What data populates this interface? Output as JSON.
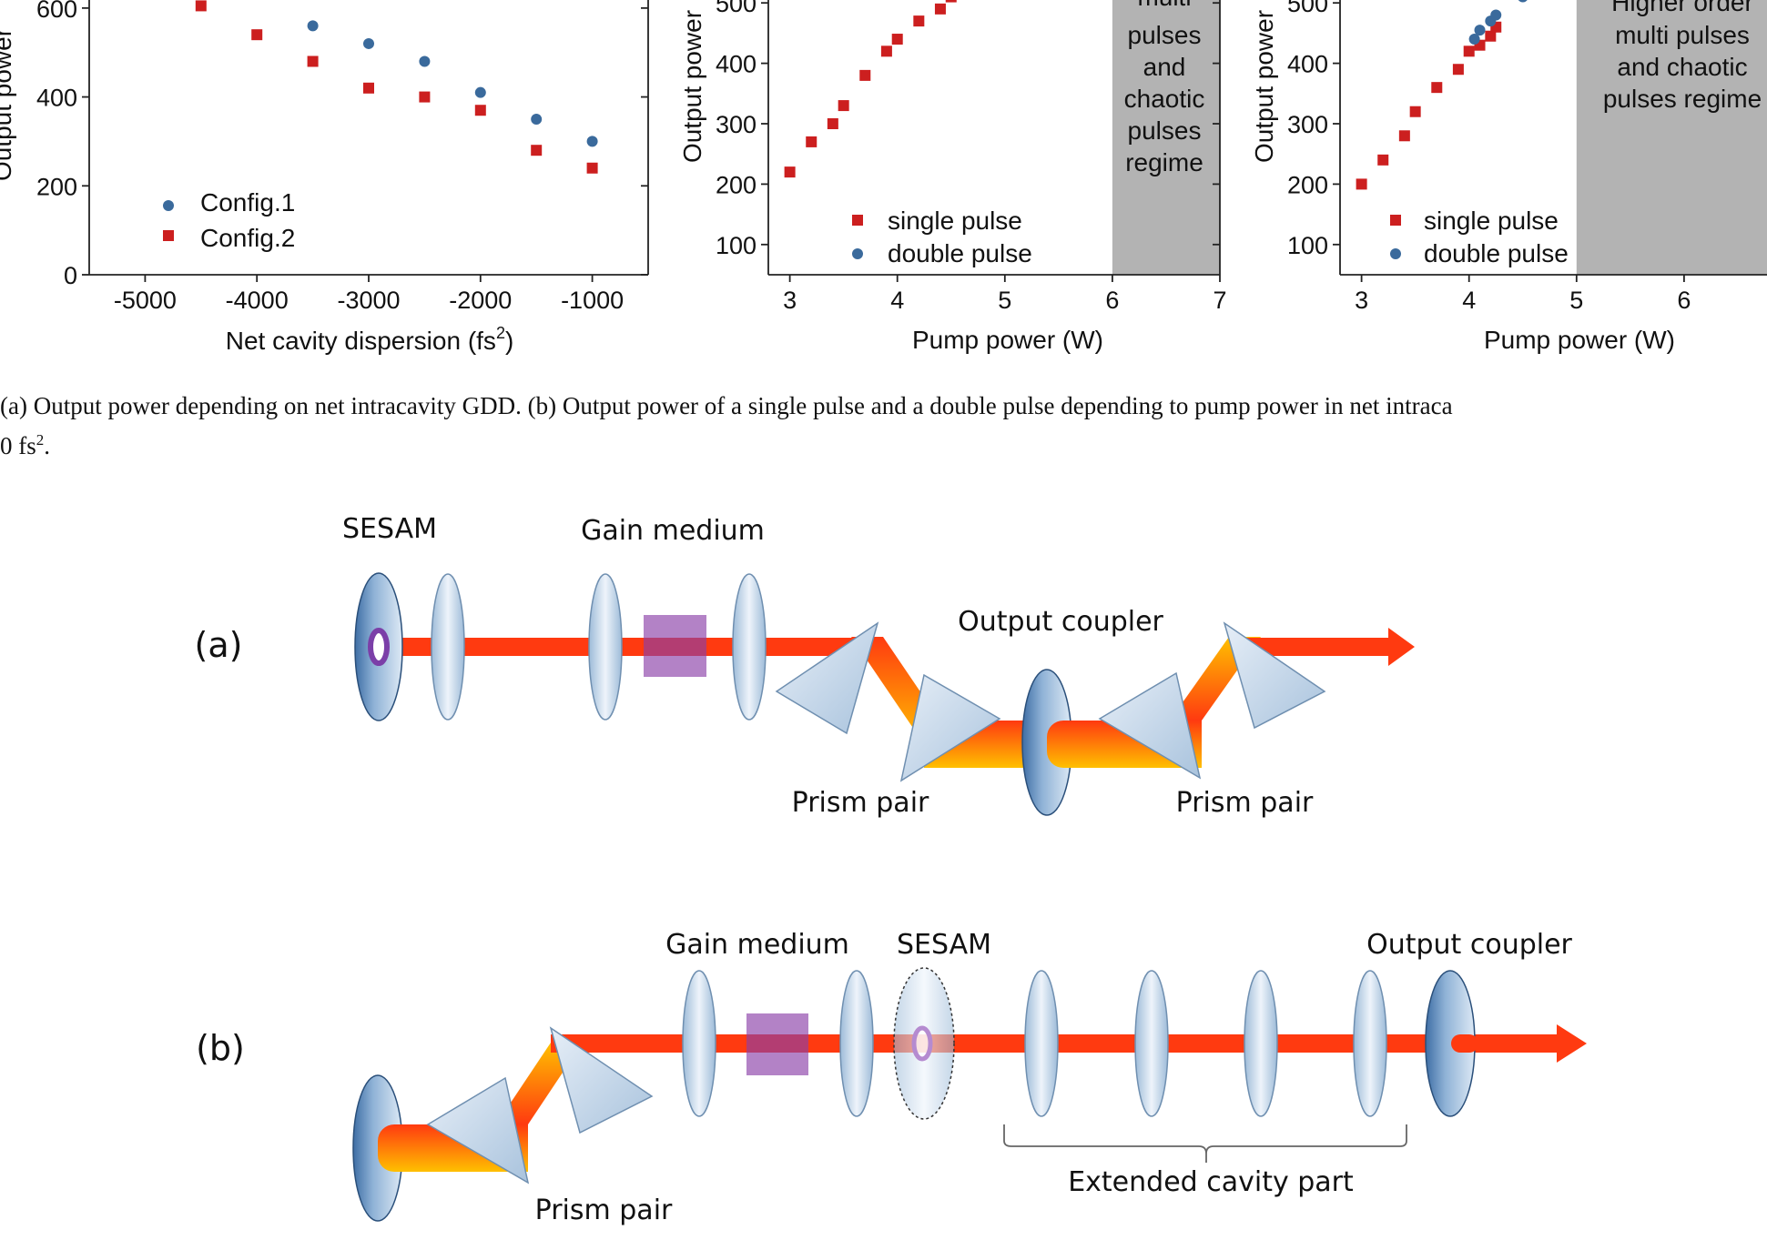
{
  "charts": {
    "chart_a": {
      "ylabel": "Output power",
      "xlabel_main": "Net cavity dispersion (fs",
      "xlabel_sup": "2",
      "xlabel_end": ")",
      "legend": [
        "Config.1",
        "Config.2"
      ]
    },
    "chart_b": {
      "ylabel": "Output power",
      "xlabel": "Pump power (W)",
      "region_label": [
        "multi",
        "pulses",
        "and",
        "chaotic",
        "pulses",
        "regime"
      ],
      "legend": [
        "single pulse",
        "double pulse"
      ]
    },
    "chart_c": {
      "ylabel": "Output power",
      "xlabel": "Pump power (W)",
      "region_label": [
        "Higher order",
        "multi pulses",
        "and chaotic",
        "pulses regime"
      ],
      "legend": [
        "single pulse",
        "double pulse"
      ]
    }
  },
  "chart_data": [
    {
      "type": "scatter",
      "title": "",
      "xlabel": "Net cavity dispersion (fs2)",
      "ylabel": "Output power",
      "xlim": [
        -5500,
        -500
      ],
      "ylim": [
        0,
        700
      ],
      "xticks": [
        -5000,
        -4000,
        -3000,
        -2000,
        -1000
      ],
      "yticks": [
        0,
        200,
        400,
        600
      ],
      "series": [
        {
          "name": "Config.1",
          "color": "#3a6a9c",
          "marker": "circle",
          "x": [
            -3500,
            -3000,
            -2500,
            -2000,
            -1500,
            -1000
          ],
          "y": [
            560,
            520,
            480,
            410,
            350,
            300
          ]
        },
        {
          "name": "Config.2",
          "color": "#cc1f1f",
          "marker": "square",
          "x": [
            -4500,
            -4000,
            -3500,
            -3000,
            -2500,
            -2000,
            -1500,
            -1000
          ],
          "y": [
            605,
            540,
            480,
            420,
            400,
            370,
            280,
            240
          ]
        }
      ]
    },
    {
      "type": "scatter",
      "title": "",
      "xlabel": "Pump power (W)",
      "ylabel": "Output power",
      "xlim": [
        2.8,
        7
      ],
      "ylim": [
        50,
        550
      ],
      "xticks": [
        3,
        4,
        5,
        6,
        7
      ],
      "yticks": [
        100,
        200,
        300,
        400,
        500
      ],
      "shaded_region": [
        6,
        7
      ],
      "series": [
        {
          "name": "single pulse",
          "color": "#cc1f1f",
          "marker": "square",
          "x": [
            3.0,
            3.2,
            3.4,
            3.5,
            3.7,
            3.9,
            4.0,
            4.2,
            4.4,
            4.5
          ],
          "y": [
            220,
            270,
            300,
            330,
            380,
            420,
            440,
            470,
            490,
            510
          ]
        },
        {
          "name": "double pulse",
          "color": "#3a6a9c",
          "marker": "circle",
          "x": [],
          "y": []
        }
      ]
    },
    {
      "type": "scatter",
      "title": "",
      "xlabel": "Pump power (W)",
      "ylabel": "Output power",
      "xlim": [
        2.8,
        7
      ],
      "ylim": [
        50,
        550
      ],
      "xticks": [
        3,
        4,
        5,
        6
      ],
      "yticks": [
        100,
        200,
        300,
        400,
        500
      ],
      "shaded_region": [
        5,
        7
      ],
      "series": [
        {
          "name": "single pulse",
          "color": "#cc1f1f",
          "marker": "square",
          "x": [
            3.0,
            3.2,
            3.4,
            3.5,
            3.7,
            3.9,
            4.0,
            4.1,
            4.2,
            4.25
          ],
          "y": [
            200,
            240,
            280,
            320,
            360,
            390,
            420,
            430,
            445,
            460
          ]
        },
        {
          "name": "double pulse",
          "color": "#3a6a9c",
          "marker": "circle",
          "x": [
            4.05,
            4.1,
            4.2,
            4.25,
            4.5
          ],
          "y": [
            440,
            455,
            470,
            480,
            510
          ]
        }
      ]
    }
  ],
  "caption": {
    "line1": "(a) Output power depending on net intracavity GDD. (b) Output power of a single pulse and a double pulse depending to pump power in net intraca",
    "line2_main": "0 fs",
    "line2_sup": "2",
    "line2_end": "."
  },
  "diagram_a": {
    "panel_label": "(a)",
    "sesam": "SESAM",
    "gain": "Gain medium",
    "output_coupler": "Output coupler",
    "prism_pair_1": "Prism pair",
    "prism_pair_2": "Prism pair"
  },
  "diagram_b": {
    "panel_label": "(b)",
    "gain": "Gain medium",
    "sesam": "SESAM",
    "output_coupler": "Output coupler",
    "prism_pair": "Prism pair",
    "extended": "Extended cavity part"
  }
}
